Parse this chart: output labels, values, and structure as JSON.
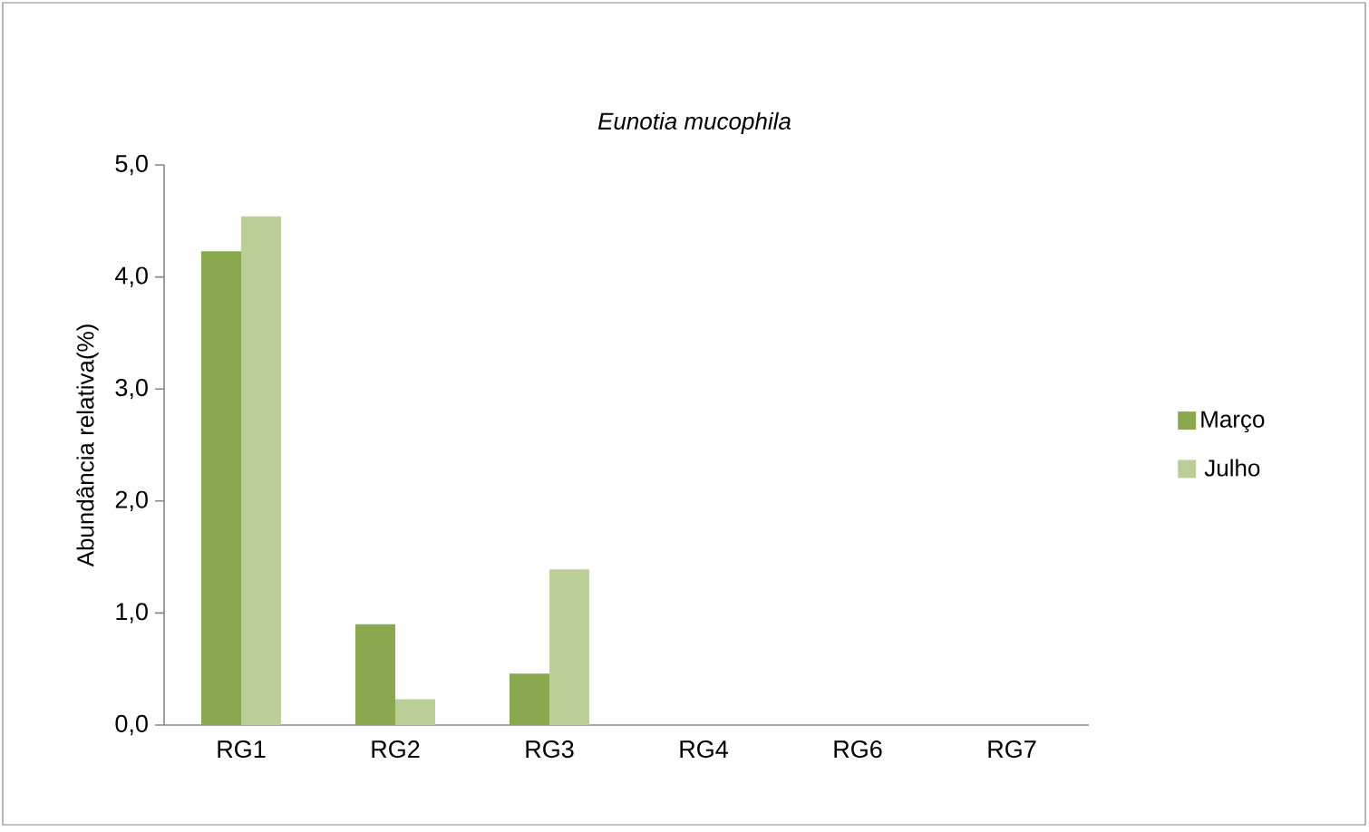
{
  "chart_data": {
    "type": "bar",
    "title": "Eunotia mucophila",
    "ylabel": "Abundância relativa(%)",
    "categories": [
      "RG1",
      "RG2",
      "RG3",
      "RG4",
      "RG6",
      "RG7"
    ],
    "series": [
      {
        "name": "Março",
        "color": "#8aa84e",
        "values": [
          4.23,
          0.9,
          0.46,
          0,
          0,
          0
        ]
      },
      {
        "name": "Julho",
        "color": "#b9cf96",
        "values": [
          4.54,
          0.23,
          1.39,
          0,
          0,
          0
        ]
      }
    ],
    "ylim": [
      0,
      5
    ],
    "yticks": [
      {
        "value": 0,
        "label": "0,0"
      },
      {
        "value": 1,
        "label": "1,0"
      },
      {
        "value": 2,
        "label": "2,0"
      },
      {
        "value": 3,
        "label": "3,0"
      },
      {
        "value": 4,
        "label": "4,0"
      },
      {
        "value": 5,
        "label": "5,0"
      }
    ],
    "grid": false,
    "legend": "right"
  }
}
